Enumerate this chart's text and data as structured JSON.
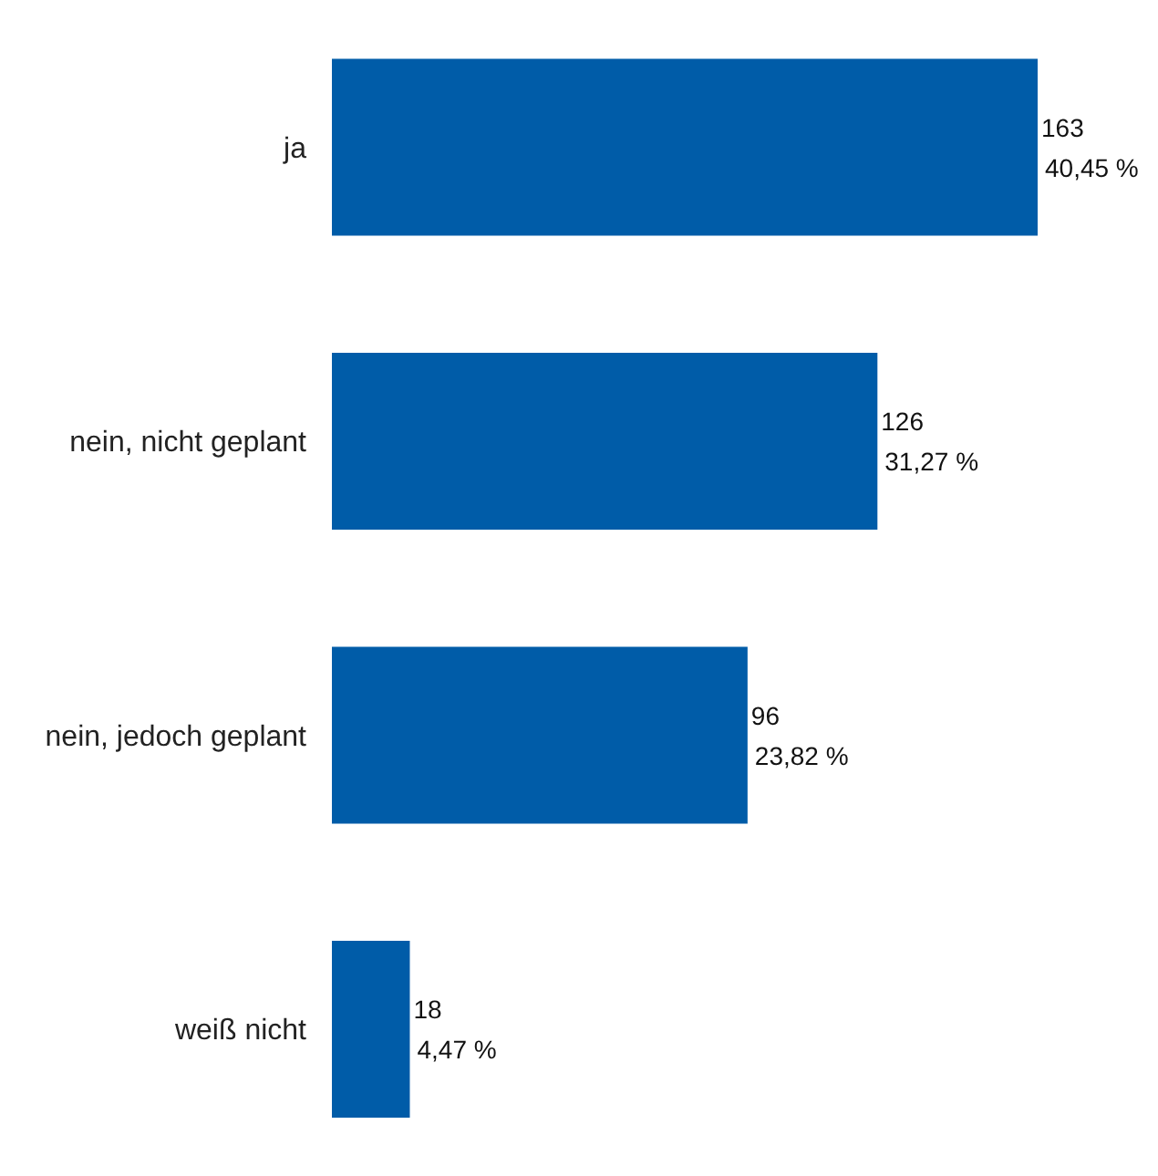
{
  "chart_data": {
    "type": "bar",
    "orientation": "horizontal",
    "categories": [
      "ja",
      "nein, nicht geplant",
      "nein, jedoch geplant",
      "weiß nicht"
    ],
    "values": [
      163,
      126,
      96,
      18
    ],
    "color": "#005ca8",
    "value_labels": [
      "163\n40,45 %",
      "126\n31,27 %",
      "96\n23,82 %",
      "18\n4,47 %"
    ],
    "grid": false,
    "legend": false
  }
}
